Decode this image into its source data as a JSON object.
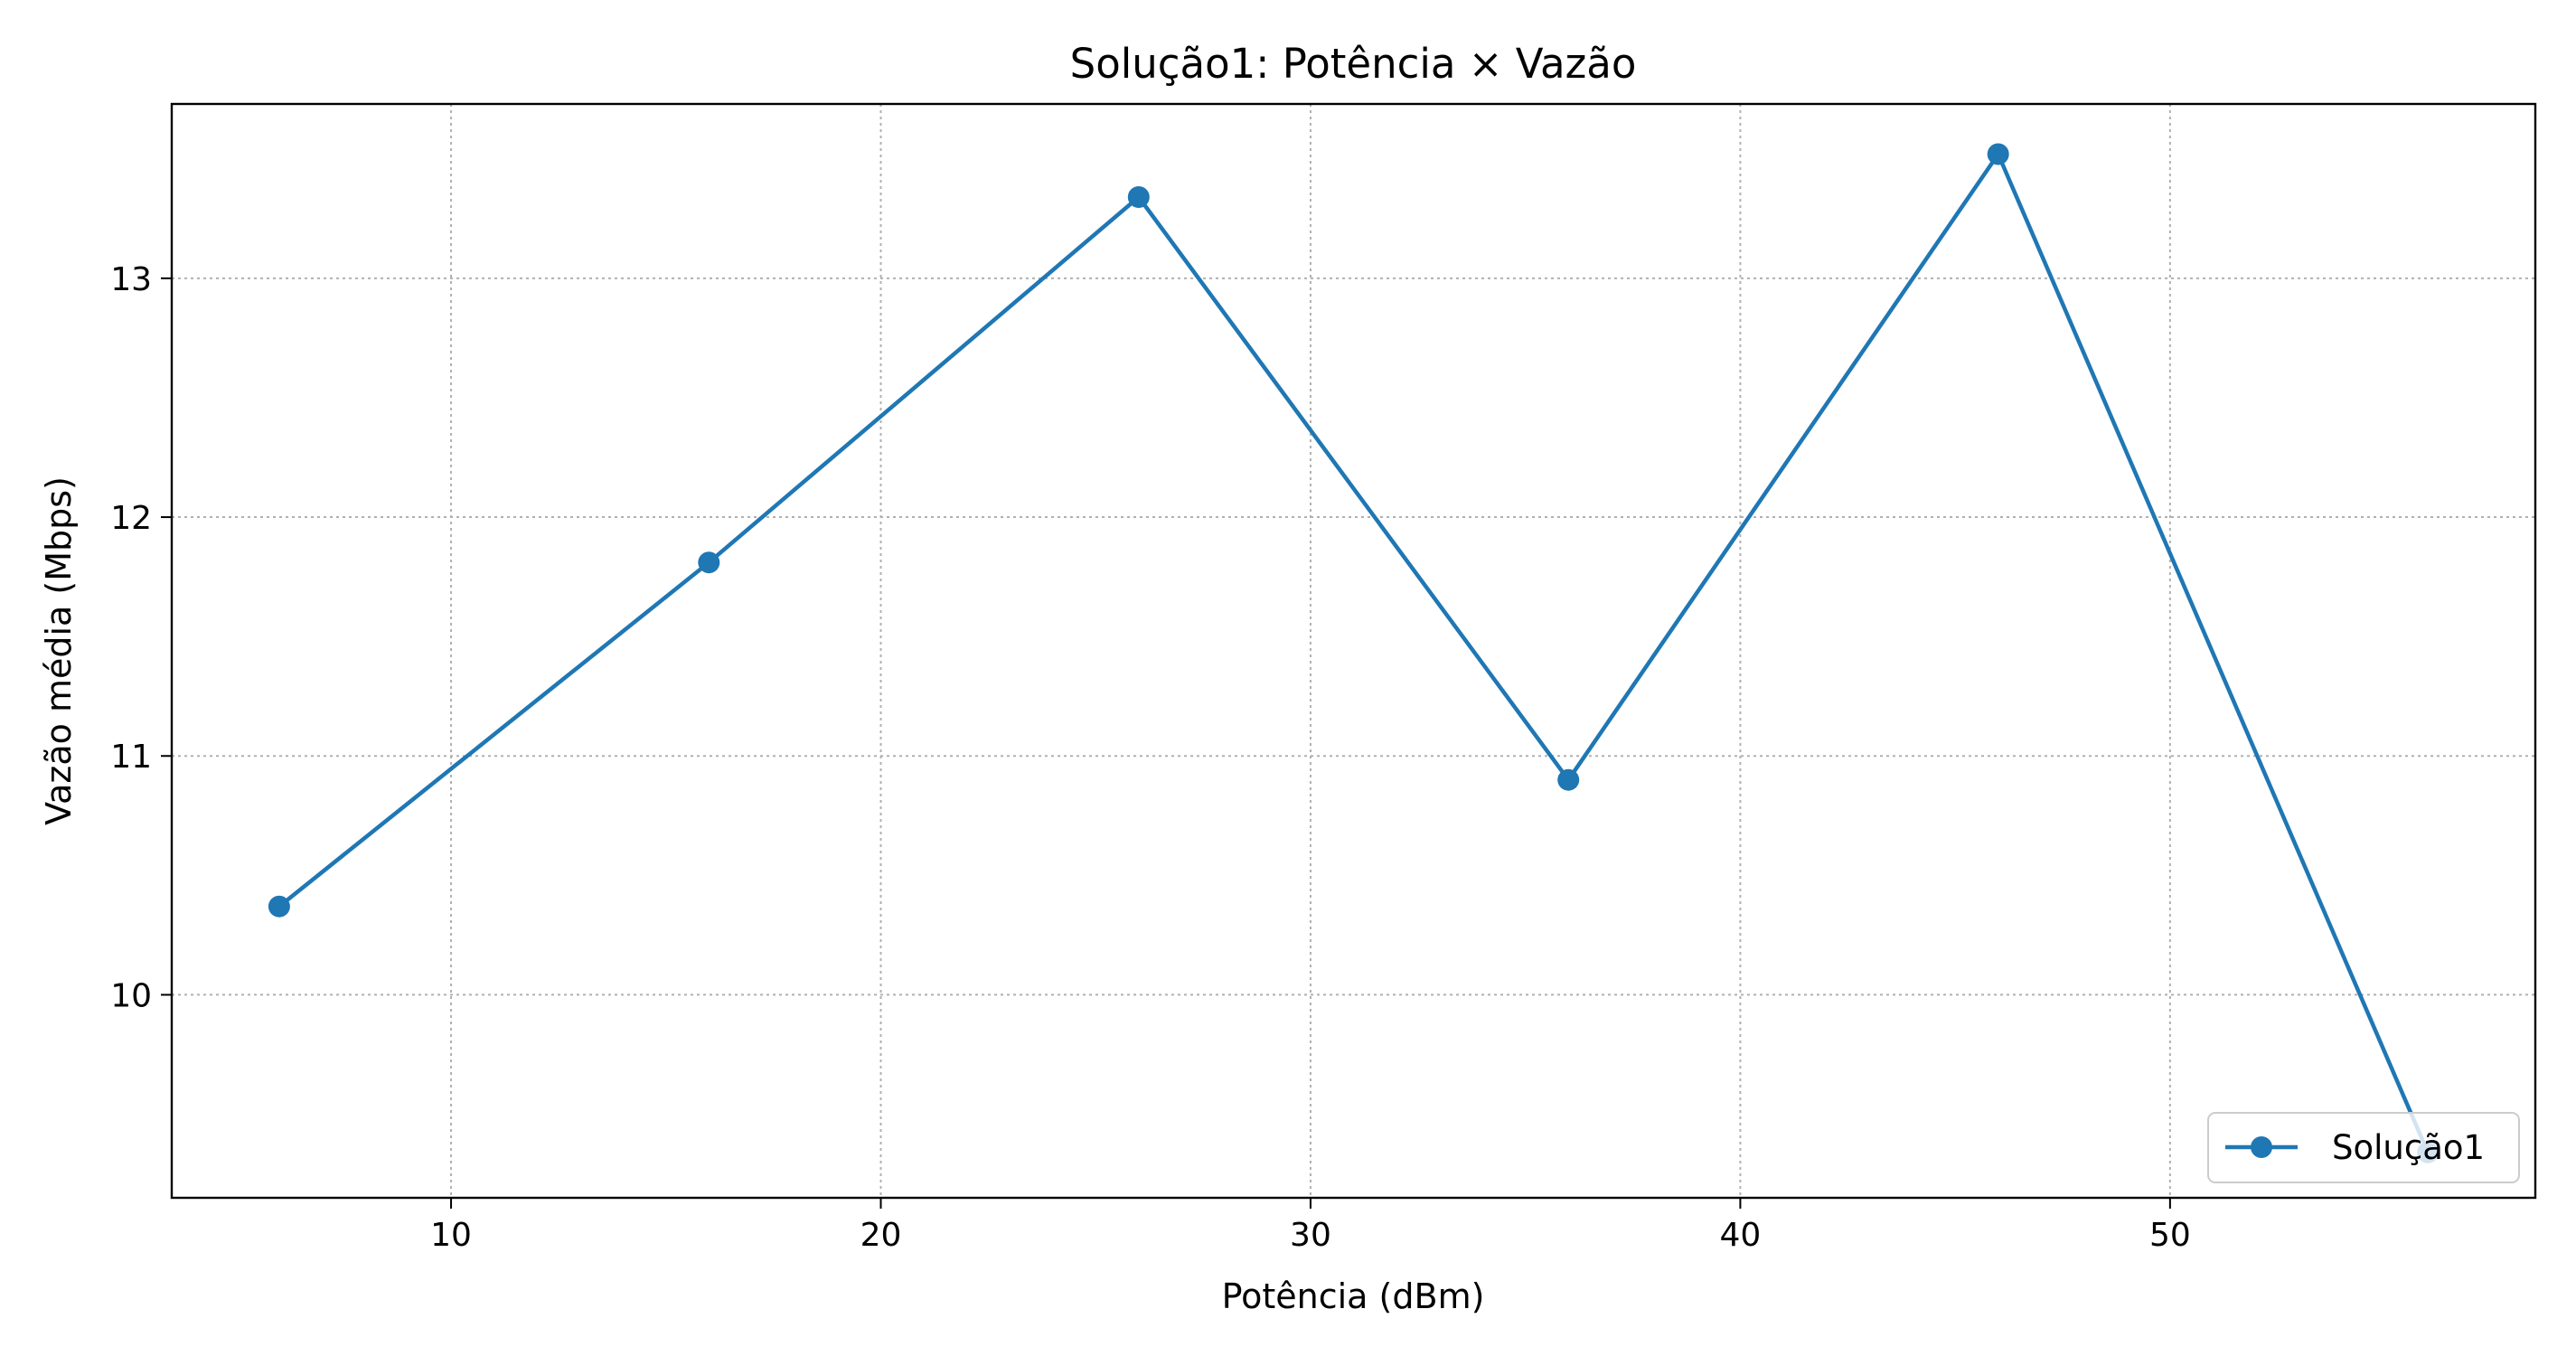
{
  "chart_data": {
    "type": "line",
    "title": "Solução1: Potência × Vazão",
    "xlabel": "Potência (dBm)",
    "ylabel": "Vazão média (Mbps)",
    "xlim": [
      3.5,
      58.5
    ],
    "ylim": [
      9.15,
      13.73
    ],
    "xticks": [
      10,
      20,
      30,
      40,
      50
    ],
    "yticks": [
      10,
      11,
      12,
      13
    ],
    "grid": true,
    "legend_position": "lower-right",
    "series": [
      {
        "name": "Solução1",
        "color": "#1f77b4",
        "marker": "circle",
        "x": [
          6,
          16,
          26,
          36,
          46,
          56
        ],
        "y": [
          10.37,
          11.81,
          13.34,
          10.9,
          13.52,
          9.34
        ]
      }
    ]
  }
}
